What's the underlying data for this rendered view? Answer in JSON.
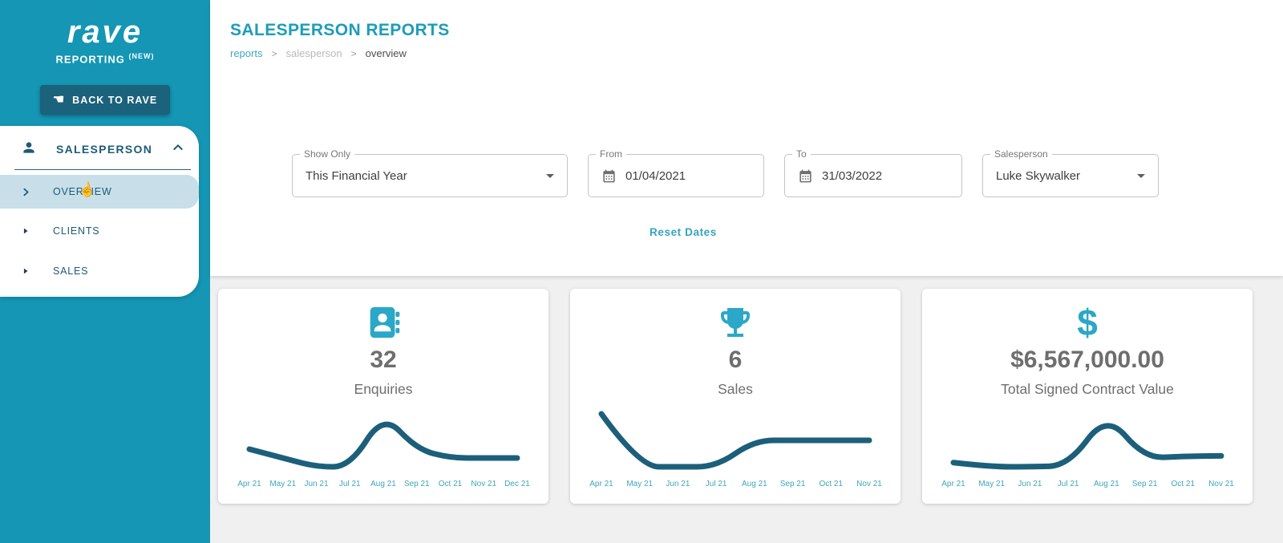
{
  "colors": {
    "sidebar_teal": "#1496b4",
    "dark_teal": "#1b627c",
    "accent": "#1c9db9",
    "nav_text": "#1c5b76",
    "highlight": "#c8dfe9",
    "icon_teal": "#2ba7c7",
    "line": "#1c5f7b",
    "tick": "#3ea6bc",
    "metric_gray": "#6e6e6e"
  },
  "sidebar": {
    "logo": "rave",
    "brand": "REPORTING",
    "brand_tag": "(NEW)",
    "back_button": {
      "label": "BACK TO RAVE",
      "icon": "hand-left-icon",
      "glyph": "☚"
    },
    "nav": {
      "header": {
        "label": "SALESPERSON",
        "icon": "person-icon",
        "state_icon": "chevron-up-icon"
      },
      "items": [
        {
          "label": "OVERVIEW",
          "icon": "chevron-right-icon",
          "active": true,
          "cursor": "hand-cursor-icon",
          "cursor_glyph": "☝"
        },
        {
          "label": "CLIENTS",
          "icon": "triangle-right-icon",
          "active": false
        },
        {
          "label": "SALES",
          "icon": "triangle-right-icon",
          "active": false
        }
      ]
    }
  },
  "header": {
    "title": "SALESPERSON REPORTS",
    "breadcrumb": [
      {
        "label": "reports",
        "type": "link"
      },
      {
        "label": "salesperson",
        "type": "muted"
      },
      {
        "label": "overview",
        "type": "current"
      }
    ],
    "breadcrumb_separator": ">"
  },
  "filters": {
    "show_only": {
      "label": "Show Only",
      "value": "This Financial Year",
      "icon": "dropdown-arrow-icon"
    },
    "from_date": {
      "label": "From",
      "value": "01/04/2021",
      "icon": "calendar-icon"
    },
    "to_date": {
      "label": "To",
      "value": "31/03/2022",
      "icon": "calendar-icon"
    },
    "salesperson": {
      "label": "Salesperson",
      "value": "Luke Skywalker",
      "icon": "dropdown-arrow-icon"
    },
    "reset_label": "Reset Dates"
  },
  "cards": [
    {
      "icon": "contacts-icon",
      "value": "32",
      "label": "Enquiries",
      "chart": 0
    },
    {
      "icon": "trophy-icon",
      "value": "6",
      "label": "Sales",
      "chart": 1
    },
    {
      "icon": "dollar-icon",
      "value": "$6,567,000.00",
      "label": "Total Signed Contract Value",
      "chart": 2
    }
  ],
  "chart_data": [
    {
      "type": "line",
      "title": "Enquiries by month",
      "x": [
        "Apr 21",
        "May 21",
        "Jun 21",
        "Jul 21",
        "Aug 21",
        "Sep 21",
        "Oct 21",
        "Nov 21",
        "Dec 21"
      ],
      "values": [
        4,
        3,
        2,
        2,
        8,
        4,
        3,
        3,
        3
      ],
      "xlabel": "",
      "ylabel": "",
      "ylim": [
        0,
        8
      ],
      "grid": false,
      "legend": "none",
      "line_color": "#1c5f7b",
      "tick_color": "#3ea6bc"
    },
    {
      "type": "line",
      "title": "Sales by month",
      "x": [
        "Apr 21",
        "May 21",
        "Jun 21",
        "Jul 21",
        "Aug 21",
        "Sep 21",
        "Oct 21",
        "Nov 21"
      ],
      "values": [
        2,
        0,
        0,
        0,
        1,
        1,
        1,
        1
      ],
      "xlabel": "",
      "ylabel": "",
      "ylim": [
        0,
        2
      ],
      "grid": false,
      "legend": "none",
      "line_color": "#1c5f7b",
      "tick_color": "#3ea6bc"
    },
    {
      "type": "line",
      "title": "Signed contract value by month",
      "x": [
        "Apr 21",
        "May 21",
        "Jun 21",
        "Jul 21",
        "Aug 21",
        "Sep 21",
        "Oct 21",
        "Nov 21"
      ],
      "values": [
        500000,
        300000,
        300000,
        350000,
        2800000,
        700000,
        800000,
        817000
      ],
      "xlabel": "",
      "ylabel": "",
      "ylim": [
        0,
        2800000
      ],
      "grid": false,
      "legend": "none",
      "line_color": "#1c5f7b",
      "tick_color": "#3ea6bc"
    }
  ]
}
